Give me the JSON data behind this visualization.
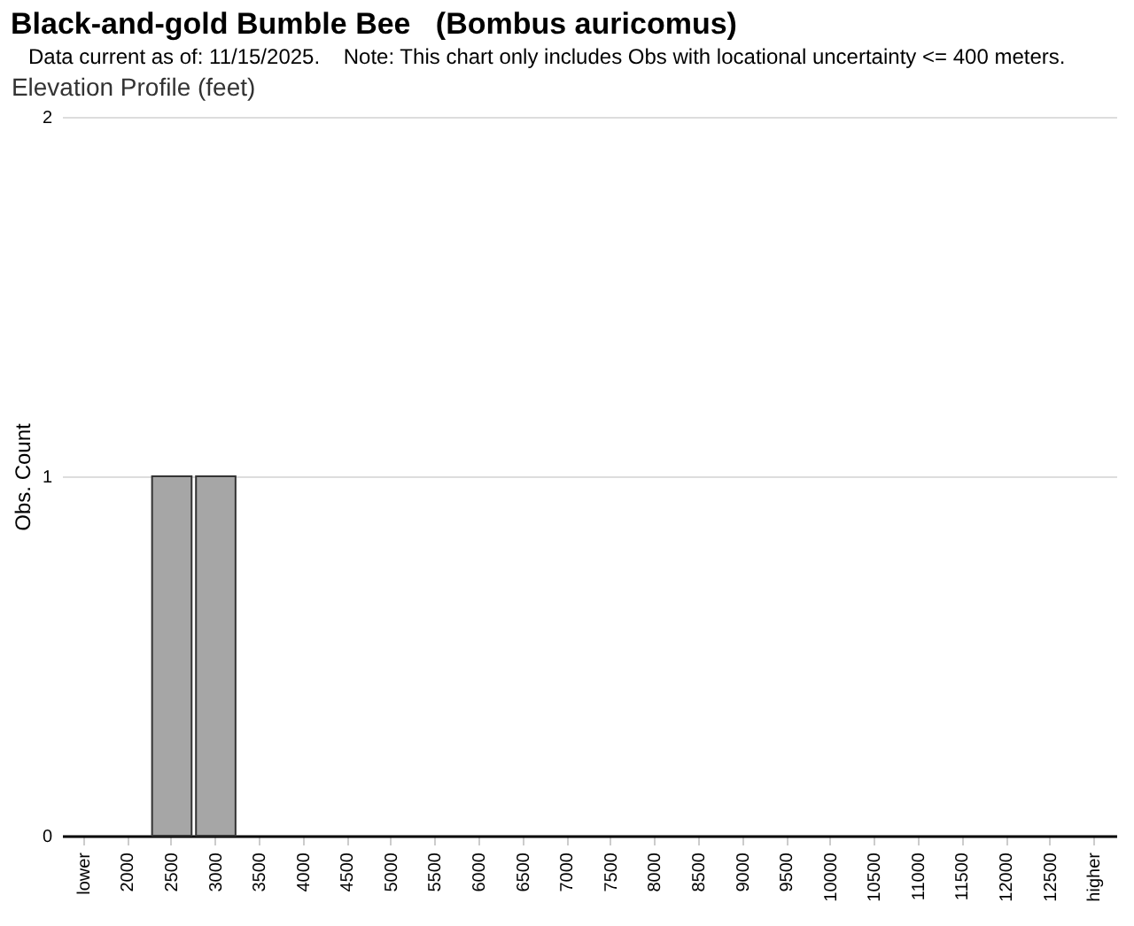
{
  "chart_data": {
    "type": "bar",
    "title": "Black-and-gold Bumble Bee   (Bombus auricomus)",
    "subtitle": "Data current as of: 11/15/2025.    Note: This chart only includes Obs with locational uncertainty <= 400 meters.",
    "annotations": [
      "Elevation Profile (feet)"
    ],
    "ylabel": "Obs. Count",
    "categories": [
      "lower",
      "2000",
      "2500",
      "3000",
      "3500",
      "4000",
      "4500",
      "5000",
      "5500",
      "6000",
      "6500",
      "7000",
      "7500",
      "8000",
      "8500",
      "9000",
      "9500",
      "10000",
      "10500",
      "11000",
      "11500",
      "12000",
      "12500",
      "higher"
    ],
    "values": [
      0,
      0,
      1,
      1,
      0,
      0,
      0,
      0,
      0,
      0,
      0,
      0,
      0,
      0,
      0,
      0,
      0,
      0,
      0,
      0,
      0,
      0,
      0,
      0
    ],
    "color": "#a6a6a6",
    "ylim": [
      0,
      2
    ],
    "yticks": [
      0,
      1,
      2
    ],
    "grid": "y"
  }
}
